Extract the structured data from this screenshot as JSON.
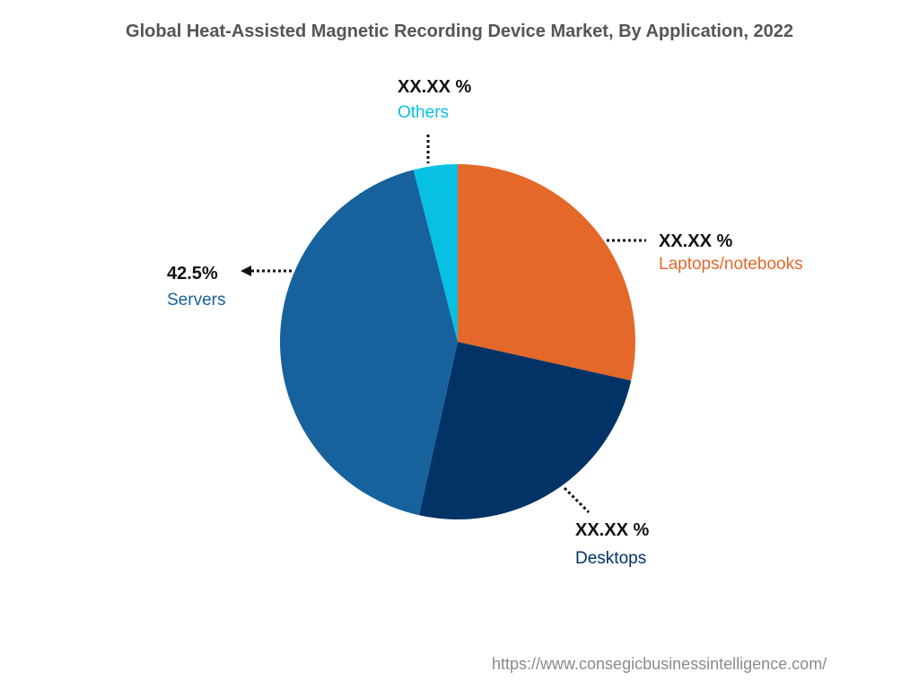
{
  "chart_data": {
    "type": "pie",
    "title": "Global Heat-Assisted Magnetic Recording Device Market, By Application, 2022",
    "slices": [
      {
        "name": "Laptops/notebooks",
        "value": 28.5,
        "label": "XX.XX %",
        "color": "#e4682a"
      },
      {
        "name": "Desktops",
        "value": 25.0,
        "label": "XX.XX %",
        "color": "#013366"
      },
      {
        "name": "Servers",
        "value": 42.5,
        "label": "42.5%",
        "color": "#17629c"
      },
      {
        "name": "Others",
        "value": 4.0,
        "label": "XX.XX %",
        "color": "#06c1e2"
      }
    ],
    "start_angle_deg": 0,
    "direction": "clockwise"
  },
  "colors": {
    "title": "#555555",
    "value_label": "#111111",
    "leader": "#111111",
    "source": "#8a8a8a"
  },
  "source": "https://www.consegicbusinessintelligence.com/"
}
